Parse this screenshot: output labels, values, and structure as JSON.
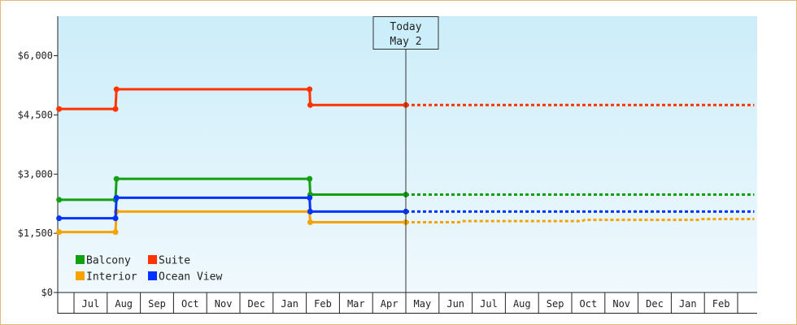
{
  "chart_data": {
    "type": "line",
    "step": true,
    "ylim": [
      0,
      7000
    ],
    "yticks": [
      {
        "value": 0,
        "label": "$0"
      },
      {
        "value": 1500,
        "label": "$1,500"
      },
      {
        "value": 3000,
        "label": "$3,000"
      },
      {
        "value": 4500,
        "label": "$4,500"
      },
      {
        "value": 6000,
        "label": "$6,000"
      }
    ],
    "months": [
      "Jul",
      "Aug",
      "Sep",
      "Oct",
      "Nov",
      "Dec",
      "Jan",
      "Feb",
      "Mar",
      "Apr",
      "May",
      "Jun",
      "Jul",
      "Aug",
      "Sep",
      "Oct",
      "Nov",
      "Dec",
      "Jan",
      "Feb"
    ],
    "today": {
      "line1": "Today",
      "line2": "May 2",
      "month_pos": 10.0
    },
    "legend": {
      "placement": "bottom-left"
    },
    "series": [
      {
        "name": "Balcony",
        "color": "#10a010",
        "points": [
          [
            -0.45,
            2350
          ],
          [
            1.25,
            2350
          ],
          [
            1.28,
            2880
          ],
          [
            7.1,
            2880
          ],
          [
            7.12,
            2480
          ],
          [
            10.0,
            2480
          ]
        ],
        "projection": [
          [
            10.0,
            2480
          ],
          [
            20.5,
            2480
          ]
        ]
      },
      {
        "name": "Suite",
        "color": "#ff3300",
        "points": [
          [
            -0.45,
            4650
          ],
          [
            1.25,
            4650
          ],
          [
            1.28,
            5150
          ],
          [
            7.1,
            5150
          ],
          [
            7.12,
            4750
          ],
          [
            10.0,
            4750
          ]
        ],
        "projection": [
          [
            10.0,
            4750
          ],
          [
            20.5,
            4750
          ]
        ]
      },
      {
        "name": "Interior",
        "color": "#f6a300",
        "points": [
          [
            -0.45,
            1530
          ],
          [
            1.25,
            1530
          ],
          [
            1.28,
            2050
          ],
          [
            7.1,
            2050
          ],
          [
            7.12,
            1780
          ],
          [
            10.0,
            1780
          ]
        ],
        "projection": [
          [
            10.0,
            1780
          ],
          [
            11.6,
            1780
          ],
          [
            11.7,
            1810
          ],
          [
            15.3,
            1810
          ],
          [
            15.4,
            1840
          ],
          [
            18.8,
            1840
          ],
          [
            18.9,
            1860
          ],
          [
            20.5,
            1860
          ]
        ]
      },
      {
        "name": "Ocean View",
        "color": "#0033ff",
        "points": [
          [
            -0.45,
            1880
          ],
          [
            1.25,
            1880
          ],
          [
            1.28,
            2400
          ],
          [
            7.1,
            2400
          ],
          [
            7.12,
            2050
          ],
          [
            10.0,
            2050
          ]
        ],
        "projection": [
          [
            10.0,
            2050
          ],
          [
            20.5,
            2050
          ]
        ]
      }
    ]
  }
}
